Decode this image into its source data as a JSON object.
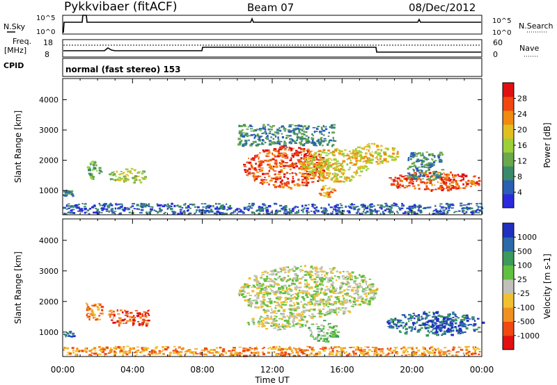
{
  "header": {
    "station": "Pykkvibaer (fitACF)",
    "beam": "Beam 07",
    "date": "08/Dec/2012"
  },
  "noise_panel": {
    "left_label": "N.Sky",
    "left_tick_top": "10^5",
    "left_tick_bottom": "10^0",
    "right_tick_top": "10^5",
    "right_tick_bottom": "10^0",
    "right_label": "N.Search"
  },
  "freq_panel": {
    "left_label_1": "Freq.",
    "left_label_2": "[MHz]",
    "left_tick_top": "18",
    "left_tick_bottom": "8",
    "right_tick_top": "60",
    "right_tick_bottom": "0",
    "right_label": "Nave"
  },
  "cpid": {
    "label": "CPID",
    "text": "normal (fast stereo) 153"
  },
  "chart_data": [
    {
      "type": "heatmap",
      "panel": "power",
      "ylabel": "Slant Range [km]",
      "xlabel": "Time UT",
      "x_ticks": [
        "00:00",
        "04:00",
        "08:00",
        "12:00",
        "16:00",
        "20:00",
        "00:00"
      ],
      "y_ticks": [
        1000,
        2000,
        3000,
        4000
      ],
      "ylim": [
        200,
        4700
      ],
      "xlim_hours": [
        0,
        24
      ],
      "colorbar": {
        "label": "Power [dB]",
        "ticks": [
          "28",
          "24",
          "20",
          "16",
          "12",
          "8",
          "4"
        ],
        "colors": [
          "#2a2adc",
          "#2a5fb4",
          "#3a8a6a",
          "#6aa84a",
          "#9ccf3a",
          "#e0c020",
          "#f08a10",
          "#f04810",
          "#e01010"
        ]
      },
      "patches": [
        {
          "t0": 0.0,
          "t1": 0.6,
          "r0": 850,
          "r1": 1050,
          "level": 2
        },
        {
          "t0": 1.3,
          "t1": 2.2,
          "r0": 1400,
          "r1": 2000,
          "level": 3
        },
        {
          "t0": 2.6,
          "t1": 4.9,
          "r0": 1250,
          "r1": 1750,
          "level": 4
        },
        {
          "t0": 10.3,
          "t1": 15.2,
          "r0": 1100,
          "r1": 2500,
          "level": 7
        },
        {
          "t0": 13.5,
          "t1": 17.5,
          "r0": 1300,
          "r1": 2400,
          "level": 5
        },
        {
          "t0": 10.0,
          "t1": 15.5,
          "r0": 2500,
          "r1": 3200,
          "level": 2
        },
        {
          "t0": 14.5,
          "t1": 15.6,
          "r0": 800,
          "r1": 1200,
          "level": 6
        },
        {
          "t0": 16.5,
          "t1": 19.2,
          "r0": 1900,
          "r1": 2600,
          "level": 5
        },
        {
          "t0": 18.5,
          "t1": 24.0,
          "r0": 1000,
          "r1": 1650,
          "level": 7
        },
        {
          "t0": 19.7,
          "t1": 21.7,
          "r0": 1400,
          "r1": 2300,
          "level": 2
        },
        {
          "t0": 0.0,
          "t1": 24.0,
          "r0": 250,
          "r1": 600,
          "level": 1
        }
      ]
    },
    {
      "type": "heatmap",
      "panel": "velocity",
      "ylabel": "Slant Range [km]",
      "xlabel": "Time UT",
      "x_ticks": [
        "00:00",
        "04:00",
        "08:00",
        "12:00",
        "16:00",
        "20:00",
        "00:00"
      ],
      "y_ticks": [
        1000,
        2000,
        3000,
        4000
      ],
      "ylim": [
        200,
        4700
      ],
      "xlim_hours": [
        0,
        24
      ],
      "colorbar": {
        "label": "Velocity [m s-1]",
        "ticks": [
          "1000",
          "500",
          "100",
          "25",
          "-25",
          "-100",
          "-500",
          "-1000"
        ],
        "colors": [
          "#e01010",
          "#f04810",
          "#f09020",
          "#f0c030",
          "#c0c0b8",
          "#60c040",
          "#3a9a5a",
          "#2a6aa8",
          "#2030c0"
        ]
      },
      "patches": [
        {
          "t0": 0.0,
          "t1": 0.6,
          "r0": 850,
          "r1": 1050,
          "level": 7
        },
        {
          "t0": 1.3,
          "t1": 2.2,
          "r0": 1400,
          "r1": 2000,
          "level": 2
        },
        {
          "t0": 2.6,
          "t1": 4.9,
          "r0": 1250,
          "r1": 1750,
          "level": 1
        },
        {
          "t0": 10.0,
          "t1": 18.0,
          "r0": 1500,
          "r1": 3200,
          "level": 4
        },
        {
          "t0": 10.5,
          "t1": 14.0,
          "r0": 1100,
          "r1": 1600,
          "level": 4
        },
        {
          "t0": 14.0,
          "t1": 15.8,
          "r0": 700,
          "r1": 1400,
          "level": 5
        },
        {
          "t0": 18.5,
          "t1": 24.0,
          "r0": 900,
          "r1": 1700,
          "level": 7
        },
        {
          "t0": 20.5,
          "t1": 23.0,
          "r0": 1000,
          "r1": 1500,
          "level": 8
        },
        {
          "t0": 0.0,
          "t1": 24.0,
          "r0": 250,
          "r1": 550,
          "level": 2
        }
      ]
    }
  ]
}
